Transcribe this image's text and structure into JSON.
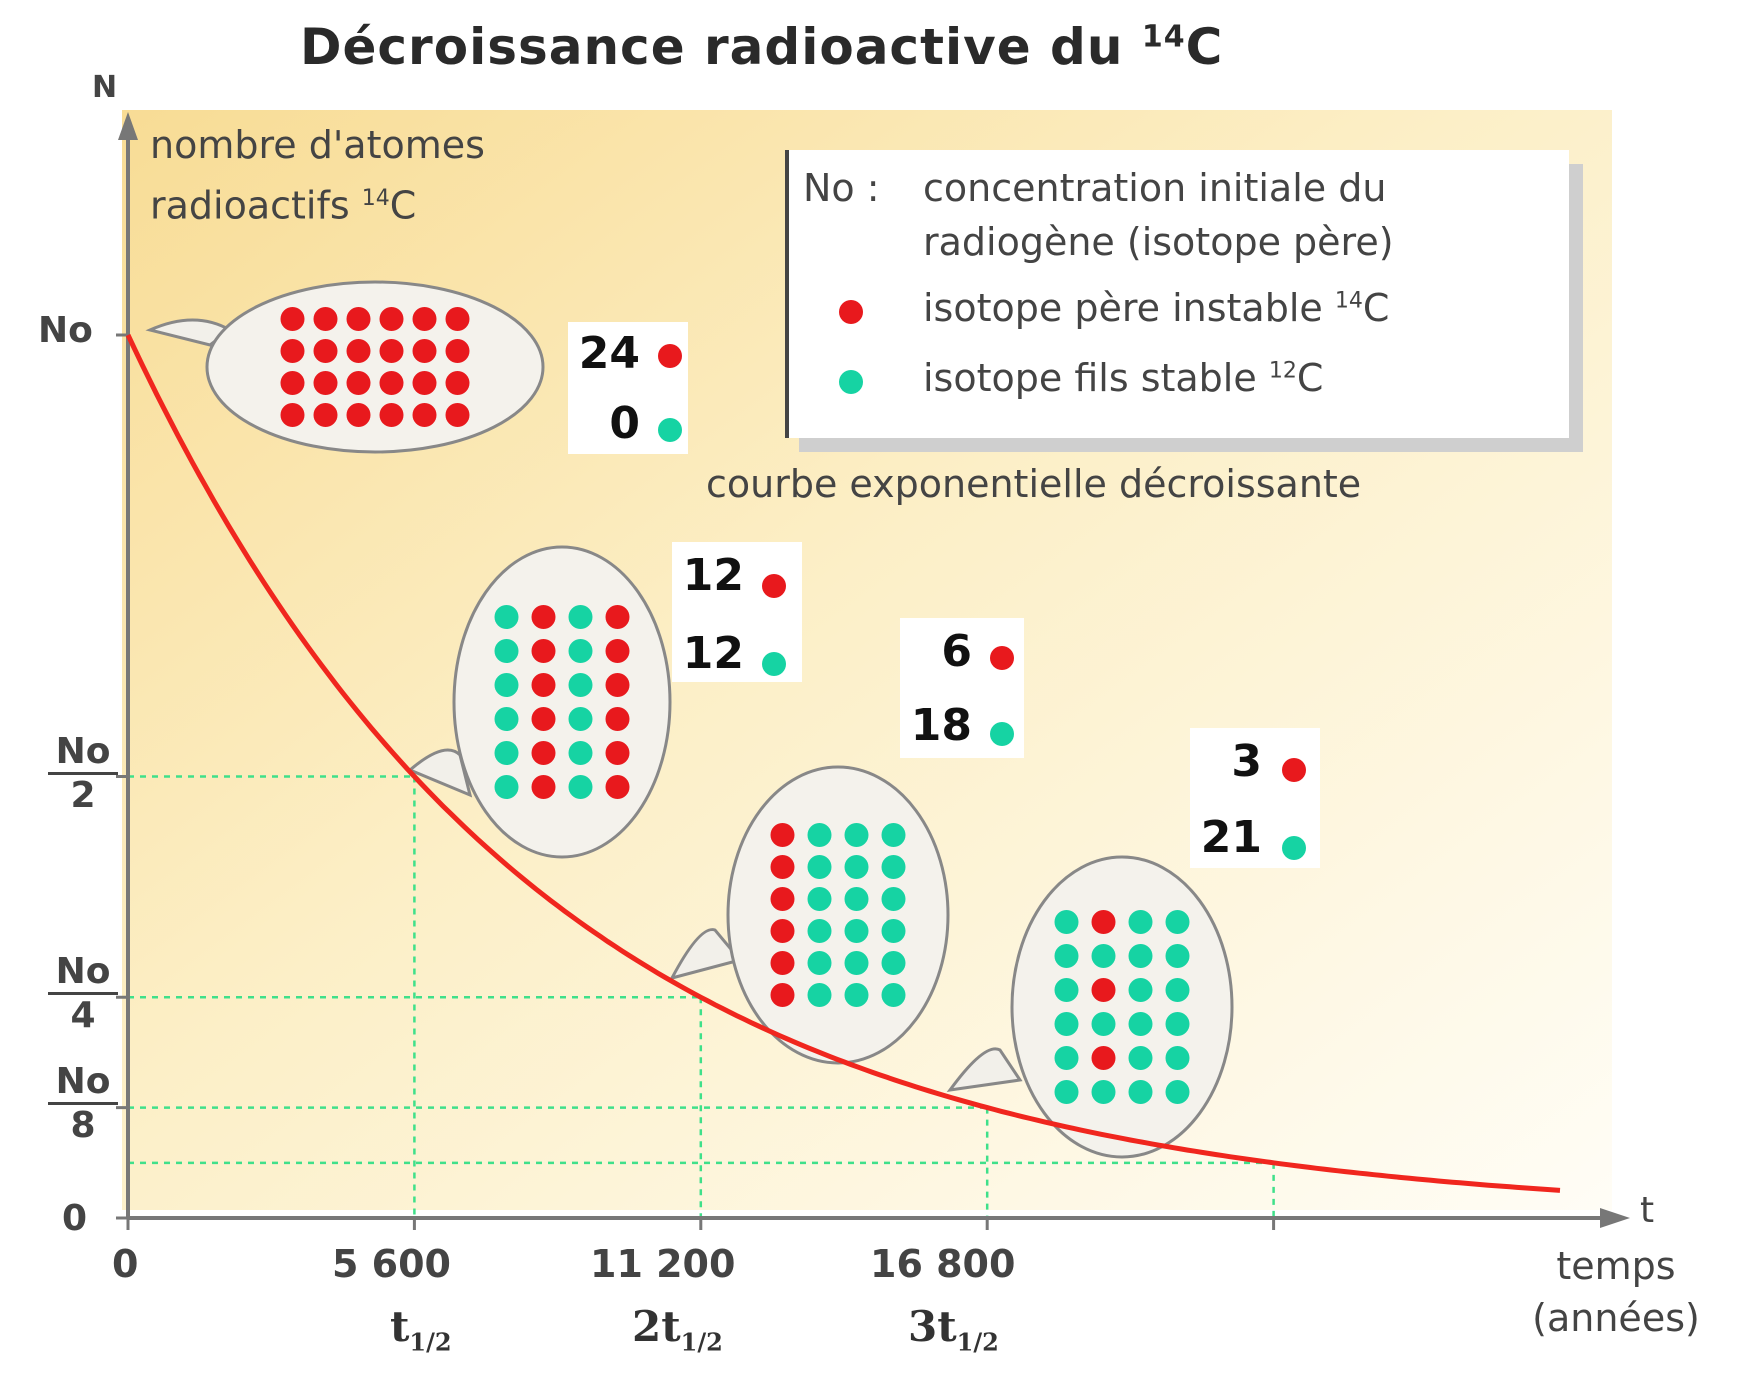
{
  "title": {
    "text": "Décroissance radioactive du ",
    "sup": "14",
    "end": "C"
  },
  "y_axis": {
    "letter": "N",
    "label_line1": "nombre d'atomes",
    "label_line2": "radioactifs ",
    "label_sup": "14",
    "label_end": "C"
  },
  "x_axis": {
    "letter": "t",
    "label_line1": "temps",
    "label_line2": "(années)"
  },
  "y_ticks": {
    "no": "No",
    "zero": "0",
    "half_num": "No",
    "half_den": "2",
    "quarter_num": "No",
    "quarter_den": "4",
    "eighth_num": "No",
    "eighth_den": "8"
  },
  "x_ticks": [
    "0",
    "5 600",
    "11 200",
    "16 800"
  ],
  "half_lives": [
    {
      "coef": "",
      "t": "t",
      "sub": "1/2"
    },
    {
      "coef": "2",
      "t": "t",
      "sub": "1/2"
    },
    {
      "coef": "3",
      "t": "t",
      "sub": "1/2"
    }
  ],
  "legend": {
    "no_key": "No :",
    "no_line1": "concentration initiale du",
    "no_line2": "radiogène (isotope père)",
    "parent": "isotope père instable ",
    "parent_sup": "14",
    "parent_end": "C",
    "daughter": "isotope fils stable ",
    "daughter_sup": "12",
    "daughter_end": "C"
  },
  "curve_caption": "courbe exponentielle décroissante",
  "colors": {
    "parent": "#e8191d",
    "daughter": "#16d3a3",
    "curve": "#f0261e",
    "guide": "#3fe08a"
  },
  "stages": [
    {
      "red": "24",
      "teal": "0",
      "parent_count": 24,
      "daughter_count": 0
    },
    {
      "red": "12",
      "teal": "12",
      "parent_count": 12,
      "daughter_count": 12
    },
    {
      "red": "6",
      "teal": "18",
      "parent_count": 6,
      "daughter_count": 18
    },
    {
      "red": "3",
      "teal": "21",
      "parent_count": 3,
      "daughter_count": 21
    }
  ],
  "chart_data": {
    "type": "line",
    "title": "Décroissance radioactive du 14C",
    "xlabel": "temps (années)",
    "ylabel": "nombre d'atomes radioactifs 14C",
    "x": [
      0,
      5600,
      11200,
      16800,
      22400,
      28000
    ],
    "y_fraction_of_No": [
      1,
      0.5,
      0.25,
      0.125,
      0.0625,
      0.03125
    ],
    "x_ticks": [
      "0",
      "5 600",
      "11 200",
      "16 800"
    ],
    "y_ticks": [
      "0",
      "No/8",
      "No/4",
      "No/2",
      "No"
    ],
    "xlim": [
      0,
      28000
    ],
    "ylim": [
      0,
      1
    ],
    "half_life_years": 5600
  }
}
